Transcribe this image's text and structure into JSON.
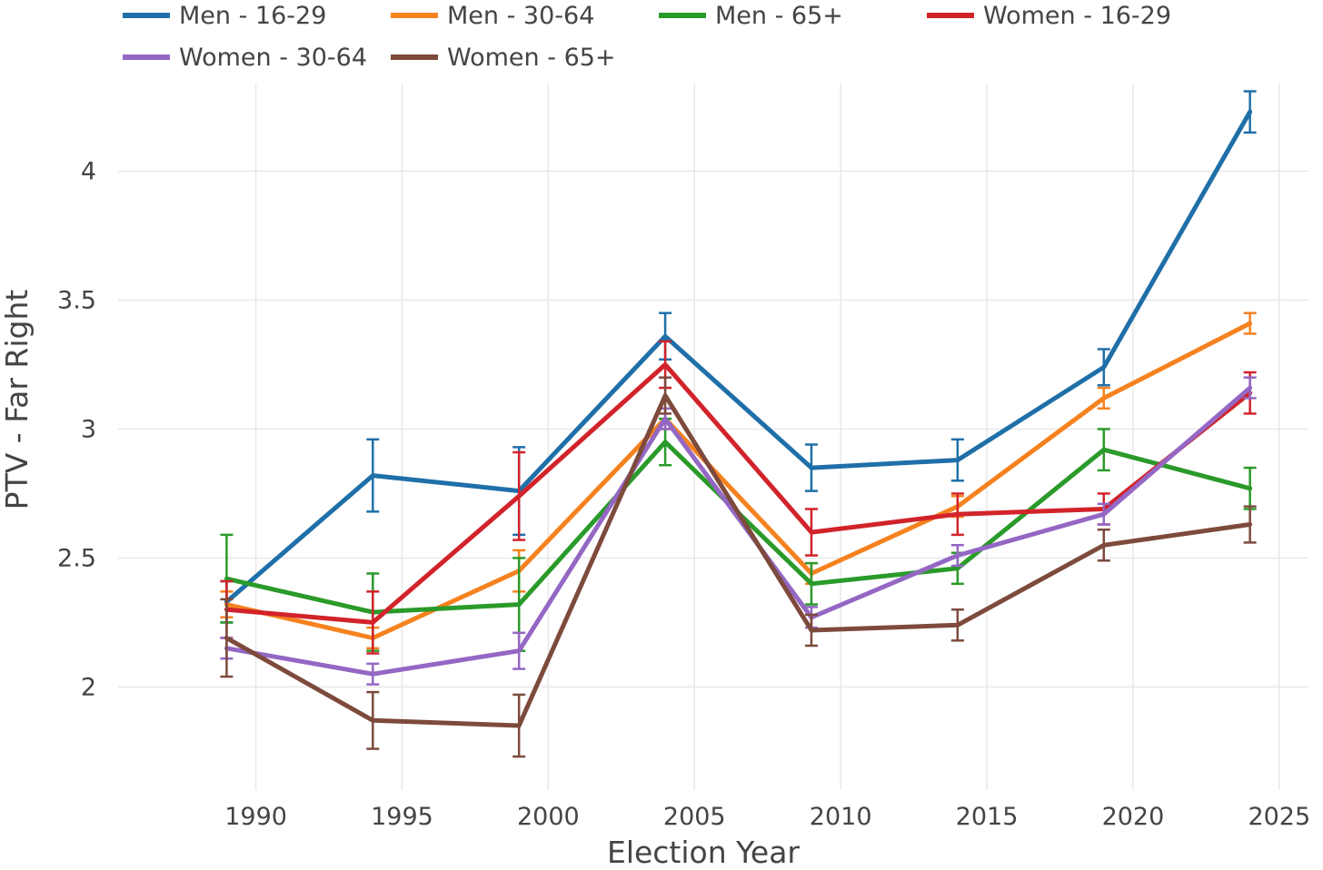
{
  "chart_data": {
    "type": "line",
    "title": "",
    "xlabel": "Election Year",
    "ylabel": "PTV - Far Right",
    "xlim": [
      1985.6,
      2026
    ],
    "ylim": [
      1.6,
      4.34
    ],
    "x_ticks": [
      1990,
      1995,
      2000,
      2005,
      2010,
      2015,
      2020,
      2025
    ],
    "y_ticks": [
      2,
      2.5,
      3,
      3.5,
      4
    ],
    "y_tick_labels": [
      "2",
      "2.5",
      "3",
      "3.5",
      "4"
    ],
    "grid": true,
    "legend_position": "top",
    "x": [
      1989,
      1994,
      1999,
      2004,
      2009,
      2014,
      2019,
      2024
    ],
    "series": [
      {
        "name": "Men - 16-29",
        "color": "#1f6fa8",
        "values": [
          2.33,
          2.82,
          2.76,
          3.36,
          2.85,
          2.88,
          3.24,
          4.23
        ],
        "errors": [
          0.08,
          0.14,
          0.17,
          0.09,
          0.09,
          0.08,
          0.07,
          0.08
        ]
      },
      {
        "name": "Men - 30-64",
        "color": "#f5821f",
        "values": [
          2.32,
          2.19,
          2.45,
          3.04,
          2.44,
          2.7,
          3.12,
          3.41
        ],
        "errors": [
          0.05,
          0.04,
          0.08,
          0.04,
          0.04,
          0.04,
          0.04,
          0.04
        ]
      },
      {
        "name": "Men - 65+",
        "color": "#2a9a2a",
        "values": [
          2.42,
          2.29,
          2.32,
          2.95,
          2.4,
          2.46,
          2.92,
          2.77
        ],
        "errors": [
          0.17,
          0.15,
          0.18,
          0.09,
          0.08,
          0.06,
          0.08,
          0.08
        ]
      },
      {
        "name": "Women - 16-29",
        "color": "#d2232a",
        "values": [
          2.3,
          2.25,
          2.74,
          3.25,
          2.6,
          2.67,
          2.69,
          3.14
        ],
        "errors": [
          0.11,
          0.12,
          0.17,
          0.09,
          0.09,
          0.08,
          0.06,
          0.08
        ]
      },
      {
        "name": "Women - 30-64",
        "color": "#9467c4",
        "values": [
          2.15,
          2.05,
          2.14,
          3.04,
          2.27,
          2.51,
          2.67,
          3.16
        ],
        "errors": [
          0.04,
          0.04,
          0.07,
          0.04,
          0.04,
          0.04,
          0.04,
          0.04
        ]
      },
      {
        "name": "Women - 65+",
        "color": "#7d4a3c",
        "values": [
          2.19,
          1.87,
          1.85,
          3.13,
          2.22,
          2.24,
          2.55,
          2.63
        ],
        "errors": [
          0.15,
          0.11,
          0.12,
          0.07,
          0.06,
          0.06,
          0.06,
          0.07
        ]
      }
    ]
  }
}
